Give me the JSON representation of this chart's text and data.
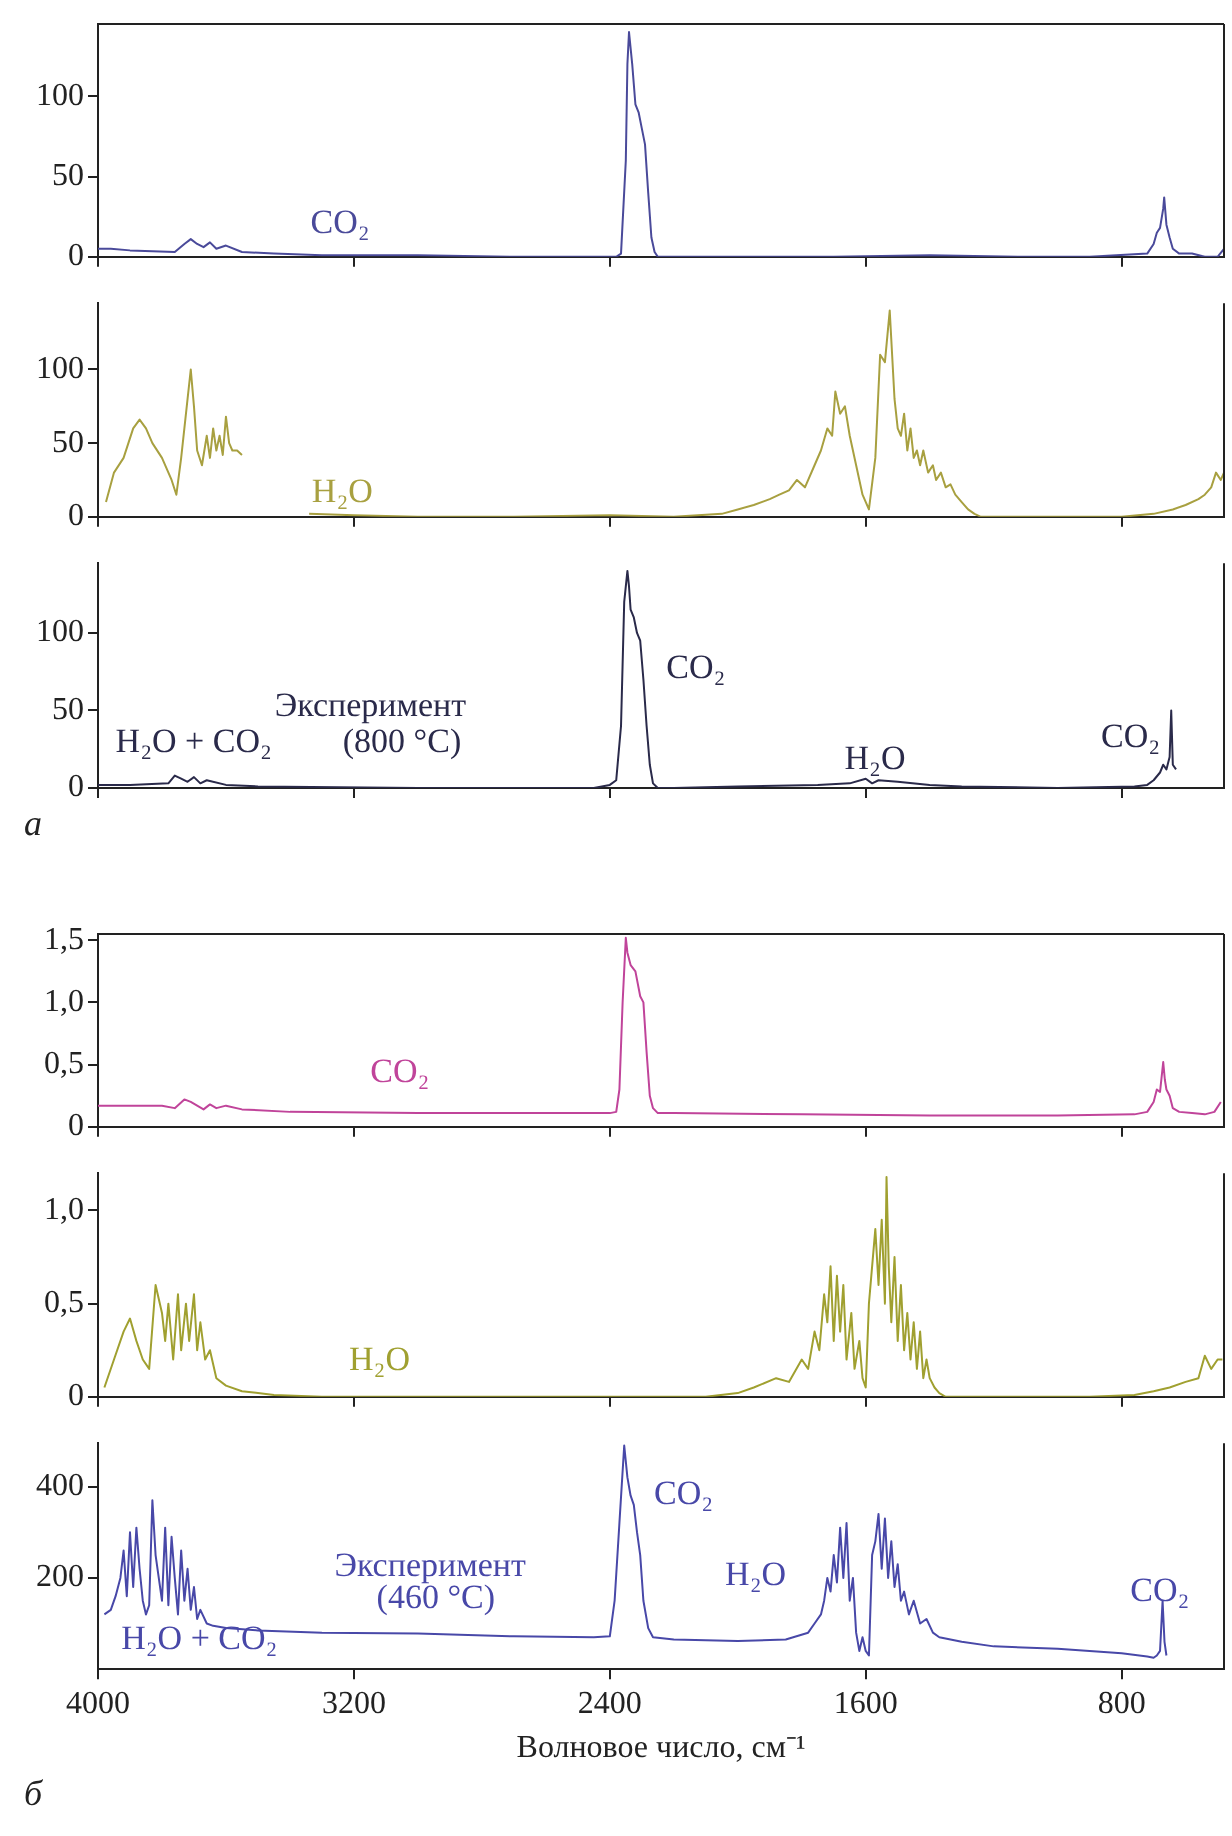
{
  "chart_data": [
    {
      "type": "line",
      "xlim": [
        4000,
        480
      ],
      "xticks": [
        4000,
        3200,
        2400,
        1600,
        800
      ],
      "ylim": [
        0,
        145
      ],
      "yticks": [
        0,
        50,
        100
      ],
      "tick_labels": "y",
      "series": [
        {
          "color": "#4a4a9a",
          "x": [
            4000,
            3960,
            3900,
            3760,
            3730,
            3710,
            3690,
            3670,
            3650,
            3630,
            3600,
            3550,
            3450,
            3300,
            3000,
            2700,
            2450,
            2400,
            2380,
            2365,
            2350,
            2345,
            2340,
            2330,
            2320,
            2310,
            2300,
            2290,
            2280,
            2270,
            2260,
            2250,
            2200,
            2000,
            1700,
            1400,
            1100,
            900,
            720,
            700,
            690,
            680,
            670,
            667,
            660,
            650,
            640,
            620,
            580,
            540,
            500,
            480
          ],
          "values": [
            5,
            5,
            4,
            3,
            8,
            11,
            8,
            6,
            9,
            5,
            7,
            3,
            2,
            1,
            1,
            0,
            0,
            0,
            0,
            2,
            60,
            120,
            140,
            120,
            95,
            90,
            80,
            70,
            40,
            12,
            3,
            0,
            0,
            0,
            0,
            1,
            0,
            0,
            2,
            8,
            15,
            18,
            30,
            37,
            20,
            12,
            5,
            2,
            2,
            0,
            0,
            5
          ]
        }
      ],
      "annotations": [
        "CO₂"
      ]
    },
    {
      "type": "line",
      "xlim": [
        4000,
        480
      ],
      "xticks": [
        4000,
        3200,
        2400,
        1600,
        800
      ],
      "ylim": [
        0,
        145
      ],
      "yticks": [
        0,
        50,
        100
      ],
      "tick_labels": "y",
      "series": [
        {
          "color": "#a8a040",
          "x": [
            3975,
            3950,
            3920,
            3890,
            3870,
            3850,
            3830,
            3800,
            3770,
            3755,
            3740,
            3720,
            3710,
            3700,
            3690,
            3675,
            3660,
            3650,
            3640,
            3630,
            3620,
            3610,
            3600,
            3590,
            3580,
            3565,
            3550,
            3450,
            3340,
            3200,
            3000,
            2700,
            2400,
            2200,
            2050,
            2000,
            1950,
            1900,
            1870,
            1840,
            1815,
            1790,
            1760,
            1740,
            1720,
            1705,
            1695,
            1680,
            1665,
            1650,
            1630,
            1610,
            1590,
            1570,
            1555,
            1540,
            1525,
            1510,
            1500,
            1490,
            1480,
            1470,
            1460,
            1450,
            1440,
            1430,
            1420,
            1405,
            1390,
            1380,
            1365,
            1350,
            1335,
            1320,
            1300,
            1280,
            1260,
            1240,
            1000,
            800,
            700,
            640,
            600,
            560,
            540,
            520,
            505,
            490,
            480
          ],
          "values": [
            10,
            30,
            40,
            60,
            66,
            60,
            50,
            40,
            25,
            15,
            40,
            80,
            100,
            75,
            45,
            35,
            55,
            40,
            60,
            45,
            55,
            42,
            68,
            50,
            45,
            45,
            42,
            null,
            2,
            1,
            0,
            0,
            1,
            0,
            2,
            5,
            8,
            12,
            15,
            18,
            25,
            20,
            35,
            45,
            60,
            55,
            85,
            70,
            75,
            55,
            35,
            15,
            5,
            40,
            110,
            105,
            140,
            80,
            60,
            55,
            70,
            45,
            60,
            40,
            45,
            35,
            45,
            30,
            35,
            25,
            30,
            20,
            22,
            15,
            10,
            5,
            2,
            0,
            0,
            0,
            2,
            5,
            8,
            12,
            15,
            20,
            30,
            25,
            30
          ]
        }
      ],
      "annotations": [
        "H₂O"
      ]
    },
    {
      "type": "line",
      "xlim": [
        4000,
        480
      ],
      "xticks": [
        4000,
        3200,
        2400,
        1600,
        800
      ],
      "ylim": [
        0,
        145
      ],
      "yticks": [
        0,
        50,
        100
      ],
      "tick_labels": "y",
      "series": [
        {
          "color": "#2a2a4a",
          "x": [
            4000,
            3900,
            3780,
            3760,
            3740,
            3720,
            3700,
            3680,
            3660,
            3600,
            3500,
            3000,
            2450,
            2400,
            2380,
            2365,
            2355,
            2345,
            2340,
            2335,
            2325,
            2315,
            2305,
            2295,
            2285,
            2275,
            2265,
            2250,
            2200,
            2000,
            1750,
            1650,
            1600,
            1580,
            1560,
            1500,
            1400,
            1300,
            1000,
            760,
            720,
            700,
            680,
            670,
            660,
            650,
            645,
            640,
            630
          ],
          "values": [
            2,
            2,
            3,
            8,
            6,
            4,
            7,
            3,
            5,
            2,
            1,
            0,
            0,
            2,
            5,
            40,
            120,
            140,
            130,
            115,
            110,
            100,
            95,
            70,
            40,
            15,
            3,
            0,
            0,
            1,
            2,
            3,
            6,
            3,
            5,
            4,
            2,
            1,
            0,
            1,
            2,
            5,
            10,
            15,
            12,
            20,
            50,
            15,
            12
          ]
        }
      ],
      "annotations": [
        "H₂O + CO₂",
        "Эксперимент",
        "(800 °C)",
        "CO₂",
        "H₂O",
        "CO₂",
        "а"
      ]
    },
    {
      "type": "line",
      "xlim": [
        4000,
        480
      ],
      "xticks": [
        4000,
        3200,
        2400,
        1600,
        800
      ],
      "ylim": [
        0,
        1.55
      ],
      "yticks": [
        0,
        {
          "value": 0.5,
          "label": "0,5"
        },
        {
          "value": 1,
          "label": "1,0"
        },
        {
          "value": 1.5,
          "label": "1,5"
        }
      ],
      "tick_labels": "y",
      "series": [
        {
          "color": "#c0449a",
          "x": [
            4000,
            3800,
            3760,
            3730,
            3710,
            3690,
            3670,
            3650,
            3630,
            3600,
            3550,
            3400,
            3000,
            2400,
            2380,
            2370,
            2360,
            2350,
            2345,
            2335,
            2320,
            2305,
            2295,
            2285,
            2275,
            2265,
            2250,
            2200,
            1800,
            1400,
            1000,
            760,
            720,
            700,
            690,
            680,
            670,
            665,
            660,
            650,
            640,
            620,
            580,
            540,
            510,
            490
          ],
          "values": [
            0.17,
            0.17,
            0.15,
            0.22,
            0.2,
            0.17,
            0.14,
            0.18,
            0.15,
            0.17,
            0.14,
            0.12,
            0.11,
            0.11,
            0.12,
            0.3,
            1.0,
            1.52,
            1.4,
            1.3,
            1.25,
            1.05,
            1.0,
            0.6,
            0.25,
            0.15,
            0.11,
            0.11,
            0.1,
            0.09,
            0.09,
            0.1,
            0.12,
            0.2,
            0.3,
            0.28,
            0.52,
            0.38,
            0.3,
            0.25,
            0.15,
            0.12,
            0.11,
            0.1,
            0.12,
            0.2
          ]
        }
      ],
      "annotations": [
        "CO₂"
      ]
    },
    {
      "type": "line",
      "xlim": [
        4000,
        480
      ],
      "xticks": [
        4000,
        3200,
        2400,
        1600,
        800
      ],
      "ylim": [
        0,
        1.2
      ],
      "yticks": [
        0,
        {
          "value": 0.5,
          "label": "0,5"
        },
        {
          "value": 1,
          "label": "1,0"
        }
      ],
      "tick_labels": "y",
      "series": [
        {
          "color": "#a0a030",
          "x": [
            3980,
            3950,
            3920,
            3900,
            3880,
            3860,
            3840,
            3820,
            3800,
            3790,
            3780,
            3765,
            3750,
            3740,
            3725,
            3715,
            3700,
            3690,
            3680,
            3665,
            3650,
            3630,
            3600,
            3550,
            3450,
            3300,
            3000,
            2500,
            2100,
            2000,
            1950,
            1880,
            1840,
            1800,
            1780,
            1760,
            1745,
            1730,
            1720,
            1710,
            1700,
            1690,
            1680,
            1670,
            1660,
            1645,
            1635,
            1620,
            1610,
            1600,
            1590,
            1580,
            1570,
            1560,
            1550,
            1540,
            1535,
            1528,
            1520,
            1510,
            1500,
            1490,
            1480,
            1470,
            1460,
            1450,
            1440,
            1430,
            1420,
            1410,
            1400,
            1385,
            1370,
            1350,
            1330,
            1200,
            900,
            760,
            700,
            650,
            600,
            560,
            540,
            520,
            500,
            485
          ],
          "values": [
            0.05,
            0.2,
            0.35,
            0.42,
            0.3,
            0.2,
            0.15,
            0.6,
            0.45,
            0.3,
            0.5,
            0.2,
            0.55,
            0.25,
            0.5,
            0.3,
            0.55,
            0.25,
            0.4,
            0.2,
            0.25,
            0.1,
            0.06,
            0.03,
            0.01,
            0,
            0,
            0,
            0,
            0.02,
            0.05,
            0.1,
            0.08,
            0.2,
            0.15,
            0.35,
            0.25,
            0.55,
            0.4,
            0.7,
            0.3,
            0.65,
            0.35,
            0.6,
            0.2,
            0.45,
            0.15,
            0.3,
            0.1,
            0.05,
            0.5,
            0.7,
            0.9,
            0.6,
            0.95,
            0.5,
            1.18,
            0.7,
            0.4,
            0.75,
            0.3,
            0.6,
            0.25,
            0.45,
            0.2,
            0.4,
            0.15,
            0.35,
            0.1,
            0.2,
            0.1,
            0.05,
            0.02,
            0,
            0,
            0,
            0,
            0.01,
            0.03,
            0.05,
            0.08,
            0.1,
            0.22,
            0.15,
            0.2,
            0.2
          ]
        }
      ],
      "annotations": [
        "H₂O"
      ]
    },
    {
      "type": "line",
      "xlim": [
        4000,
        480
      ],
      "xticks": [
        4000,
        3200,
        2400,
        1600,
        800
      ],
      "ylim": [
        0,
        495
      ],
      "yticks": [
        200,
        400
      ],
      "xlabel": "Волновое число, см⁻¹",
      "series": [
        {
          "color": "#4848a8",
          "x": [
            3980,
            3960,
            3945,
            3930,
            3920,
            3910,
            3900,
            3890,
            3880,
            3870,
            3860,
            3850,
            3840,
            3830,
            3820,
            3810,
            3800,
            3790,
            3780,
            3770,
            3760,
            3750,
            3740,
            3730,
            3720,
            3710,
            3700,
            3690,
            3680,
            3660,
            3640,
            3600,
            3500,
            3300,
            3000,
            2700,
            2450,
            2400,
            2385,
            2370,
            2355,
            2345,
            2335,
            2325,
            2315,
            2305,
            2295,
            2280,
            2265,
            2200,
            2000,
            1850,
            1780,
            1760,
            1740,
            1730,
            1720,
            1710,
            1700,
            1690,
            1680,
            1670,
            1660,
            1650,
            1640,
            1630,
            1620,
            1610,
            1600,
            1590,
            1580,
            1570,
            1560,
            1550,
            1540,
            1530,
            1520,
            1510,
            1500,
            1490,
            1480,
            1465,
            1450,
            1430,
            1410,
            1390,
            1370,
            1300,
            1200,
            1000,
            800,
            720,
            700,
            690,
            680,
            672,
            666,
            660
          ],
          "values": [
            120,
            130,
            160,
            200,
            260,
            160,
            300,
            180,
            310,
            220,
            150,
            120,
            140,
            370,
            250,
            200,
            150,
            310,
            140,
            290,
            200,
            120,
            260,
            150,
            220,
            130,
            180,
            110,
            130,
            100,
            95,
            90,
            85,
            80,
            78,
            72,
            70,
            72,
            150,
            320,
            490,
            420,
            380,
            360,
            300,
            250,
            150,
            90,
            70,
            65,
            62,
            65,
            80,
            100,
            120,
            150,
            200,
            170,
            250,
            190,
            310,
            200,
            320,
            150,
            200,
            80,
            40,
            70,
            40,
            30,
            250,
            280,
            340,
            220,
            330,
            200,
            280,
            180,
            230,
            150,
            170,
            120,
            150,
            100,
            110,
            80,
            70,
            60,
            50,
            45,
            35,
            28,
            25,
            30,
            40,
            150,
            60,
            30
          ]
        }
      ],
      "annotations": [
        "CO₂",
        "Эксперимент",
        "(460 °C)",
        "H₂O",
        "H₂O + CO₂",
        "CO₂",
        "б"
      ]
    }
  ]
}
